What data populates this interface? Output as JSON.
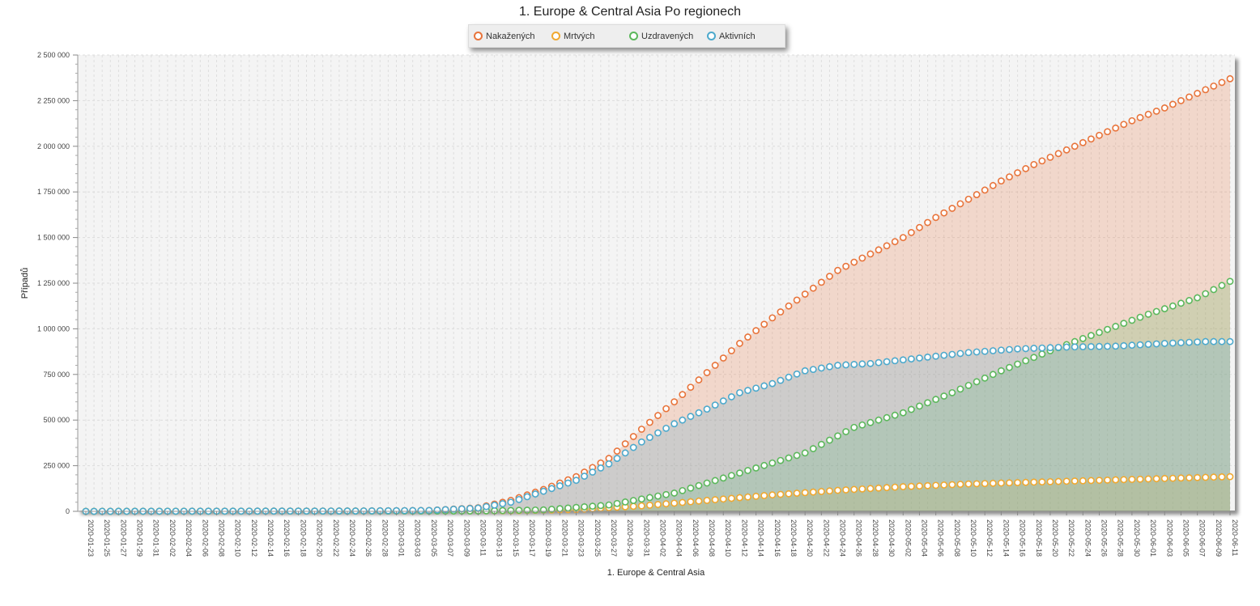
{
  "chart_data": {
    "type": "area",
    "title": "1. Europe & Central Asia Po regionech",
    "xlabel": "1. Europe & Central Asia",
    "ylabel": "Případů",
    "ylim": [
      0,
      2500000
    ],
    "y_ticks": [
      "0",
      "250 000",
      "500 000",
      "750 000",
      "1 000 000",
      "1 250 000",
      "1 500 000",
      "1 750 000",
      "2 000 000",
      "2 250 000",
      "2 500 000"
    ],
    "x_start": "2020-01-23",
    "x_end": "2020-06-11",
    "x_tick_step_days": 2,
    "grid": true,
    "legend": "top-center",
    "colors": {
      "Nakažených": "#e8743b",
      "Mrtvých": "#f0a830",
      "Uzdravených": "#5cb85c",
      "Aktivních": "#4da9cc"
    },
    "series": [
      {
        "name": "Nakažených",
        "points": [
          [
            "2020-01-23",
            0
          ],
          [
            "2020-02-25",
            2000
          ],
          [
            "2020-03-05",
            5000
          ],
          [
            "2020-03-11",
            20000
          ],
          [
            "2020-03-15",
            60000
          ],
          [
            "2020-03-19",
            120000
          ],
          [
            "2020-03-23",
            190000
          ],
          [
            "2020-03-27",
            290000
          ],
          [
            "2020-03-31",
            450000
          ],
          [
            "2020-04-04",
            600000
          ],
          [
            "2020-04-08",
            760000
          ],
          [
            "2020-04-12",
            920000
          ],
          [
            "2020-04-16",
            1060000
          ],
          [
            "2020-04-20",
            1190000
          ],
          [
            "2020-04-24",
            1320000
          ],
          [
            "2020-04-28",
            1410000
          ],
          [
            "2020-05-02",
            1500000
          ],
          [
            "2020-05-06",
            1610000
          ],
          [
            "2020-05-10",
            1710000
          ],
          [
            "2020-05-14",
            1810000
          ],
          [
            "2020-05-18",
            1900000
          ],
          [
            "2020-05-22",
            1980000
          ],
          [
            "2020-05-26",
            2060000
          ],
          [
            "2020-05-30",
            2140000
          ],
          [
            "2020-06-03",
            2210000
          ],
          [
            "2020-06-07",
            2290000
          ],
          [
            "2020-06-11",
            2370000
          ]
        ]
      },
      {
        "name": "Mrtvých",
        "points": [
          [
            "2020-01-23",
            0
          ],
          [
            "2020-03-15",
            3000
          ],
          [
            "2020-03-23",
            10000
          ],
          [
            "2020-03-31",
            30000
          ],
          [
            "2020-04-08",
            60000
          ],
          [
            "2020-04-16",
            90000
          ],
          [
            "2020-04-24",
            115000
          ],
          [
            "2020-05-02",
            135000
          ],
          [
            "2020-05-10",
            150000
          ],
          [
            "2020-05-18",
            160000
          ],
          [
            "2020-05-26",
            170000
          ],
          [
            "2020-06-03",
            180000
          ],
          [
            "2020-06-11",
            190000
          ]
        ]
      },
      {
        "name": "Uzdravených",
        "points": [
          [
            "2020-01-23",
            0
          ],
          [
            "2020-03-11",
            2000
          ],
          [
            "2020-03-19",
            8000
          ],
          [
            "2020-03-27",
            35000
          ],
          [
            "2020-04-04",
            100000
          ],
          [
            "2020-04-12",
            210000
          ],
          [
            "2020-04-20",
            320000
          ],
          [
            "2020-04-26",
            460000
          ],
          [
            "2020-05-02",
            540000
          ],
          [
            "2020-05-08",
            650000
          ],
          [
            "2020-05-14",
            770000
          ],
          [
            "2020-05-20",
            880000
          ],
          [
            "2020-05-26",
            980000
          ],
          [
            "2020-06-01",
            1080000
          ],
          [
            "2020-06-07",
            1170000
          ],
          [
            "2020-06-11",
            1260000
          ]
        ]
      },
      {
        "name": "Aktivních",
        "points": [
          [
            "2020-01-23",
            0
          ],
          [
            "2020-02-25",
            2000
          ],
          [
            "2020-03-05",
            5000
          ],
          [
            "2020-03-11",
            18000
          ],
          [
            "2020-03-15",
            50000
          ],
          [
            "2020-03-19",
            110000
          ],
          [
            "2020-03-23",
            170000
          ],
          [
            "2020-03-27",
            260000
          ],
          [
            "2020-03-31",
            380000
          ],
          [
            "2020-04-04",
            480000
          ],
          [
            "2020-04-08",
            560000
          ],
          [
            "2020-04-12",
            650000
          ],
          [
            "2020-04-16",
            700000
          ],
          [
            "2020-04-20",
            770000
          ],
          [
            "2020-04-24",
            800000
          ],
          [
            "2020-04-28",
            810000
          ],
          [
            "2020-05-04",
            840000
          ],
          [
            "2020-05-10",
            870000
          ],
          [
            "2020-05-16",
            890000
          ],
          [
            "2020-05-22",
            900000
          ],
          [
            "2020-05-28",
            905000
          ],
          [
            "2020-06-03",
            920000
          ],
          [
            "2020-06-08",
            930000
          ],
          [
            "2020-06-11",
            930000
          ]
        ]
      }
    ]
  }
}
